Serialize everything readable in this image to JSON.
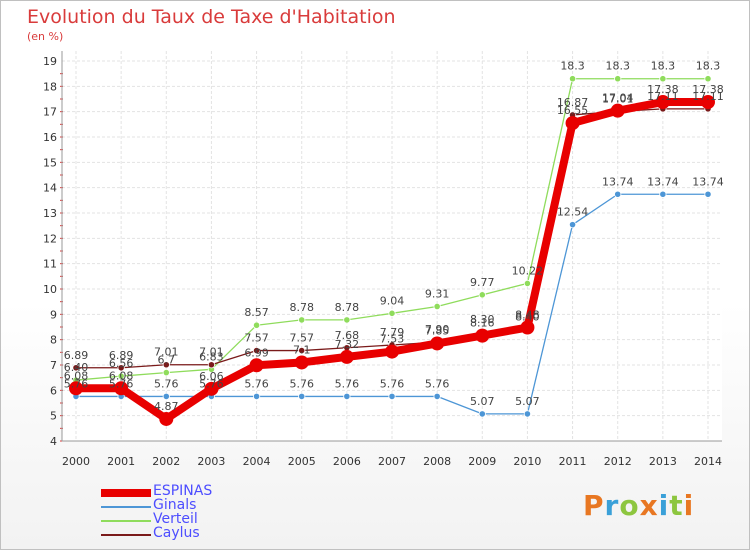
{
  "header": {
    "title": "Evolution du Taux de Taxe d'Habitation",
    "subtitle": "(en %)"
  },
  "logo": {
    "text": "Proxiti",
    "colors": [
      "#e87722",
      "#3aa0d8",
      "#8dc63f",
      "#e87722",
      "#3aa0d8",
      "#8dc63f",
      "#e87722"
    ]
  },
  "chart_data": {
    "type": "line",
    "title": "Evolution du Taux de Taxe d'Habitation",
    "ylabel": "(en %)",
    "xlabel": "",
    "x": [
      "2000",
      "2001",
      "2002",
      "2003",
      "2004",
      "2005",
      "2006",
      "2007",
      "2008",
      "2009",
      "2010",
      "2011",
      "2012",
      "2013",
      "2014"
    ],
    "ylim": [
      4,
      19
    ],
    "yticks": [
      4,
      5,
      6,
      7,
      8,
      9,
      10,
      11,
      12,
      13,
      14,
      15,
      16,
      17,
      18,
      19
    ],
    "grid": true,
    "legend_position": "bottom-left",
    "series": [
      {
        "name": "ESPINAS",
        "color": "#e80000",
        "values": [
          6.08,
          6.08,
          4.87,
          6.06,
          6.99,
          7.1,
          7.32,
          7.53,
          7.85,
          8.16,
          8.48,
          16.55,
          17.04,
          17.38,
          17.38
        ],
        "labels": [
          "6.08",
          "6.08",
          "4.87",
          "6.06",
          "6.99",
          "7.1",
          "7.32",
          "7.53",
          "7.85",
          "8.16",
          "8.48",
          "16.55",
          "17.04",
          "17.38",
          "17.38"
        ]
      },
      {
        "name": "Ginals",
        "color": "#4d96d6",
        "values": [
          5.76,
          5.76,
          5.76,
          5.76,
          5.76,
          5.76,
          5.76,
          5.76,
          5.76,
          5.07,
          5.07,
          12.54,
          13.74,
          13.74,
          13.74
        ],
        "labels": [
          "5.76",
          "5.76",
          "5.76",
          "5.76",
          "5.76",
          "5.76",
          "5.76",
          "5.76",
          "5.76",
          "5.07",
          "5.07",
          "12.54",
          "13.74",
          "13.74",
          "13.74"
        ]
      },
      {
        "name": "Verteil",
        "color": "#8fdc5c",
        "values": [
          6.4,
          6.56,
          6.7,
          6.83,
          8.57,
          8.78,
          8.78,
          9.04,
          9.31,
          9.77,
          10.22,
          18.3,
          18.3,
          18.3,
          18.3
        ],
        "labels": [
          "6.40",
          "6.56",
          "6.7",
          "6.83",
          "8.57",
          "8.78",
          "8.78",
          "9.04",
          "9.31",
          "9.77",
          "10.22",
          "18.3",
          "18.3",
          "18.3",
          "18.3"
        ]
      },
      {
        "name": "Caylus",
        "color": "#7a1a1a",
        "values": [
          6.89,
          6.89,
          7.01,
          7.01,
          7.57,
          7.57,
          7.68,
          7.79,
          7.9,
          8.3,
          8.4,
          16.87,
          17.01,
          17.11,
          17.11
        ],
        "labels": [
          "6.89",
          "6.89",
          "7.01",
          "7.01",
          "7.57",
          "7.57",
          "7.68",
          "7.79",
          "7.90",
          "8.30",
          "8.40",
          "16.87",
          "17.01",
          "17.11",
          "17.11"
        ]
      }
    ]
  }
}
